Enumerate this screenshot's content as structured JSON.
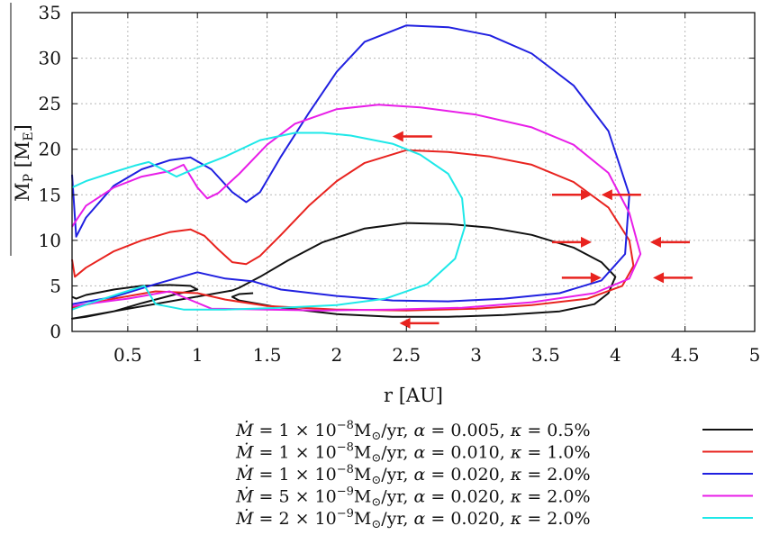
{
  "chart_data": {
    "type": "line",
    "xlabel": "r [AU]",
    "ylabel": "M_P [M_E]",
    "xlim": [
      0.1,
      5
    ],
    "ylim": [
      0,
      35
    ],
    "xticks": [
      "0.5",
      "1",
      "1.5",
      "2",
      "2.5",
      "3",
      "3.5",
      "4",
      "4.5",
      "5"
    ],
    "yticks": [
      "0",
      "5",
      "10",
      "15",
      "20",
      "25",
      "30",
      "35"
    ],
    "grid": true,
    "legend_position": "bottom-right, below plot",
    "series": [
      {
        "name": "Ṁ = 1 × 10⁻⁸M⊙/yr, α = 0.005, κ = 0.5%",
        "color": "#111111",
        "points": [
          [
            0.1,
            3.8
          ],
          [
            0.13,
            3.6
          ],
          [
            0.2,
            4.0
          ],
          [
            0.4,
            4.6
          ],
          [
            0.6,
            5.0
          ],
          [
            0.8,
            5.1
          ],
          [
            0.95,
            5.0
          ],
          [
            1.0,
            4.6
          ],
          [
            0.85,
            4.1
          ],
          [
            0.6,
            3.1
          ],
          [
            0.4,
            2.2
          ],
          [
            0.2,
            1.6
          ],
          [
            0.1,
            1.4
          ],
          [
            1.25,
            4.5
          ],
          [
            1.3,
            4.8
          ],
          [
            1.45,
            6.0
          ],
          [
            1.65,
            7.8
          ],
          [
            1.9,
            9.8
          ],
          [
            2.2,
            11.3
          ],
          [
            2.5,
            11.9
          ],
          [
            2.8,
            11.8
          ],
          [
            3.1,
            11.4
          ],
          [
            3.4,
            10.6
          ],
          [
            3.7,
            9.2
          ],
          [
            3.9,
            7.6
          ],
          [
            4.0,
            6.0
          ],
          [
            3.95,
            4.2
          ],
          [
            3.85,
            3.0
          ],
          [
            3.6,
            2.2
          ],
          [
            3.2,
            1.8
          ],
          [
            2.8,
            1.6
          ],
          [
            2.4,
            1.6
          ],
          [
            2.0,
            1.9
          ],
          [
            1.6,
            2.6
          ],
          [
            1.3,
            3.4
          ],
          [
            1.25,
            3.8
          ],
          [
            1.3,
            4.1
          ],
          [
            1.4,
            4.2
          ]
        ]
      },
      {
        "name": "Ṁ = 1 × 10⁻⁸M⊙/yr, α = 0.010, κ = 1.0%",
        "color": "#e8231f",
        "points": [
          [
            0.1,
            7.9
          ],
          [
            0.12,
            6.0
          ],
          [
            0.2,
            7.0
          ],
          [
            0.4,
            8.8
          ],
          [
            0.6,
            10.0
          ],
          [
            0.8,
            10.9
          ],
          [
            0.95,
            11.2
          ],
          [
            1.05,
            10.5
          ],
          [
            1.15,
            9.0
          ],
          [
            1.25,
            7.6
          ],
          [
            1.35,
            7.4
          ],
          [
            1.45,
            8.3
          ],
          [
            1.6,
            10.6
          ],
          [
            1.8,
            13.8
          ],
          [
            2.0,
            16.5
          ],
          [
            2.2,
            18.5
          ],
          [
            2.5,
            19.9
          ],
          [
            2.8,
            19.7
          ],
          [
            3.1,
            19.2
          ],
          [
            3.4,
            18.3
          ],
          [
            3.7,
            16.4
          ],
          [
            3.95,
            13.6
          ],
          [
            4.1,
            10.0
          ],
          [
            4.13,
            7.2
          ],
          [
            4.05,
            5.0
          ],
          [
            3.8,
            3.6
          ],
          [
            3.4,
            2.9
          ],
          [
            3.0,
            2.5
          ],
          [
            2.5,
            2.3
          ],
          [
            2.0,
            2.4
          ],
          [
            1.5,
            2.8
          ],
          [
            1.2,
            3.5
          ],
          [
            1.0,
            4.2
          ],
          [
            0.7,
            4.4
          ],
          [
            0.4,
            3.6
          ],
          [
            0.1,
            2.6
          ]
        ]
      },
      {
        "name": "Ṁ = 1 × 10⁻⁸M⊙/yr, α = 0.020, κ = 2.0%",
        "color": "#2020e0",
        "points": [
          [
            0.1,
            17.2
          ],
          [
            0.13,
            10.4
          ],
          [
            0.2,
            12.5
          ],
          [
            0.4,
            16.0
          ],
          [
            0.6,
            17.8
          ],
          [
            0.8,
            18.8
          ],
          [
            0.95,
            19.1
          ],
          [
            1.1,
            17.8
          ],
          [
            1.25,
            15.3
          ],
          [
            1.35,
            14.2
          ],
          [
            1.45,
            15.3
          ],
          [
            1.6,
            19.2
          ],
          [
            1.8,
            24.0
          ],
          [
            2.0,
            28.5
          ],
          [
            2.2,
            31.8
          ],
          [
            2.5,
            33.6
          ],
          [
            2.8,
            33.4
          ],
          [
            3.1,
            32.5
          ],
          [
            3.4,
            30.5
          ],
          [
            3.7,
            27.0
          ],
          [
            3.95,
            22.0
          ],
          [
            4.1,
            15.0
          ],
          [
            4.07,
            8.5
          ],
          [
            3.9,
            5.6
          ],
          [
            3.6,
            4.2
          ],
          [
            3.2,
            3.6
          ],
          [
            2.8,
            3.3
          ],
          [
            2.4,
            3.4
          ],
          [
            2.0,
            3.9
          ],
          [
            1.6,
            4.6
          ],
          [
            1.4,
            5.5
          ],
          [
            1.2,
            5.8
          ],
          [
            1.0,
            6.5
          ],
          [
            0.7,
            5.2
          ],
          [
            0.4,
            3.8
          ],
          [
            0.1,
            3.0
          ]
        ]
      },
      {
        "name": "Ṁ = 5 × 10⁻⁹M⊙/yr, α = 0.020, κ = 2.0%",
        "color": "#e81ee8",
        "points": [
          [
            0.1,
            11.5
          ],
          [
            0.2,
            13.8
          ],
          [
            0.4,
            15.8
          ],
          [
            0.6,
            17.0
          ],
          [
            0.8,
            17.6
          ],
          [
            0.9,
            18.3
          ],
          [
            1.0,
            15.8
          ],
          [
            1.07,
            14.6
          ],
          [
            1.15,
            15.2
          ],
          [
            1.3,
            17.3
          ],
          [
            1.5,
            20.5
          ],
          [
            1.7,
            22.8
          ],
          [
            2.0,
            24.4
          ],
          [
            2.3,
            24.9
          ],
          [
            2.6,
            24.6
          ],
          [
            3.0,
            23.8
          ],
          [
            3.4,
            22.4
          ],
          [
            3.7,
            20.5
          ],
          [
            3.95,
            17.4
          ],
          [
            4.1,
            13.0
          ],
          [
            4.18,
            8.5
          ],
          [
            4.1,
            5.8
          ],
          [
            3.85,
            4.2
          ],
          [
            3.4,
            3.2
          ],
          [
            2.9,
            2.6
          ],
          [
            2.4,
            2.4
          ],
          [
            1.9,
            2.3
          ],
          [
            1.5,
            2.4
          ],
          [
            1.1,
            2.5
          ],
          [
            0.8,
            4.4
          ],
          [
            0.5,
            3.6
          ],
          [
            0.1,
            2.8
          ]
        ]
      },
      {
        "name": "Ṁ = 2 × 10⁻⁹M⊙/yr, α = 0.020, κ = 2.0%",
        "color": "#1ee8e8",
        "points": [
          [
            0.1,
            15.8
          ],
          [
            0.2,
            16.5
          ],
          [
            0.4,
            17.5
          ],
          [
            0.55,
            18.2
          ],
          [
            0.65,
            18.6
          ],
          [
            0.75,
            17.8
          ],
          [
            0.85,
            17.0
          ],
          [
            1.0,
            18.0
          ],
          [
            1.2,
            19.2
          ],
          [
            1.45,
            21.0
          ],
          [
            1.7,
            21.8
          ],
          [
            1.9,
            21.8
          ],
          [
            2.1,
            21.5
          ],
          [
            2.4,
            20.6
          ],
          [
            2.6,
            19.4
          ],
          [
            2.8,
            17.3
          ],
          [
            2.9,
            14.6
          ],
          [
            2.92,
            11.5
          ],
          [
            2.85,
            8.0
          ],
          [
            2.65,
            5.2
          ],
          [
            2.35,
            3.6
          ],
          [
            2.0,
            2.9
          ],
          [
            1.6,
            2.6
          ],
          [
            1.2,
            2.4
          ],
          [
            0.9,
            2.4
          ],
          [
            0.7,
            3.0
          ],
          [
            0.62,
            5.0
          ],
          [
            0.45,
            4.2
          ],
          [
            0.25,
            3.2
          ],
          [
            0.1,
            2.4
          ]
        ]
      }
    ],
    "arrows": [
      {
        "x": 2.4,
        "y": 21.4,
        "dir": "left"
      },
      {
        "x": 3.83,
        "y": 15.0,
        "dir": "right"
      },
      {
        "x": 3.9,
        "y": 15.0,
        "dir": "left"
      },
      {
        "x": 3.83,
        "y": 9.8,
        "dir": "right"
      },
      {
        "x": 4.25,
        "y": 9.8,
        "dir": "left"
      },
      {
        "x": 3.9,
        "y": 5.9,
        "dir": "right"
      },
      {
        "x": 4.27,
        "y": 5.9,
        "dir": "left"
      },
      {
        "x": 2.45,
        "y": 0.9,
        "dir": "left"
      }
    ],
    "legend": [
      {
        "rate": "1 × 10",
        "exp": "−8",
        "alpha": "0.005",
        "kappa": "0.5%",
        "color": "#111111"
      },
      {
        "rate": "1 × 10",
        "exp": "−8",
        "alpha": "0.010",
        "kappa": "1.0%",
        "color": "#e8231f"
      },
      {
        "rate": "1 × 10",
        "exp": "−8",
        "alpha": "0.020",
        "kappa": "2.0%",
        "color": "#2020e0"
      },
      {
        "rate": "5 × 10",
        "exp": "−9",
        "alpha": "0.020",
        "kappa": "2.0%",
        "color": "#e81ee8"
      },
      {
        "rate": "2 × 10",
        "exp": "−9",
        "alpha": "0.020",
        "kappa": "2.0%",
        "color": "#1ee8e8"
      }
    ]
  }
}
